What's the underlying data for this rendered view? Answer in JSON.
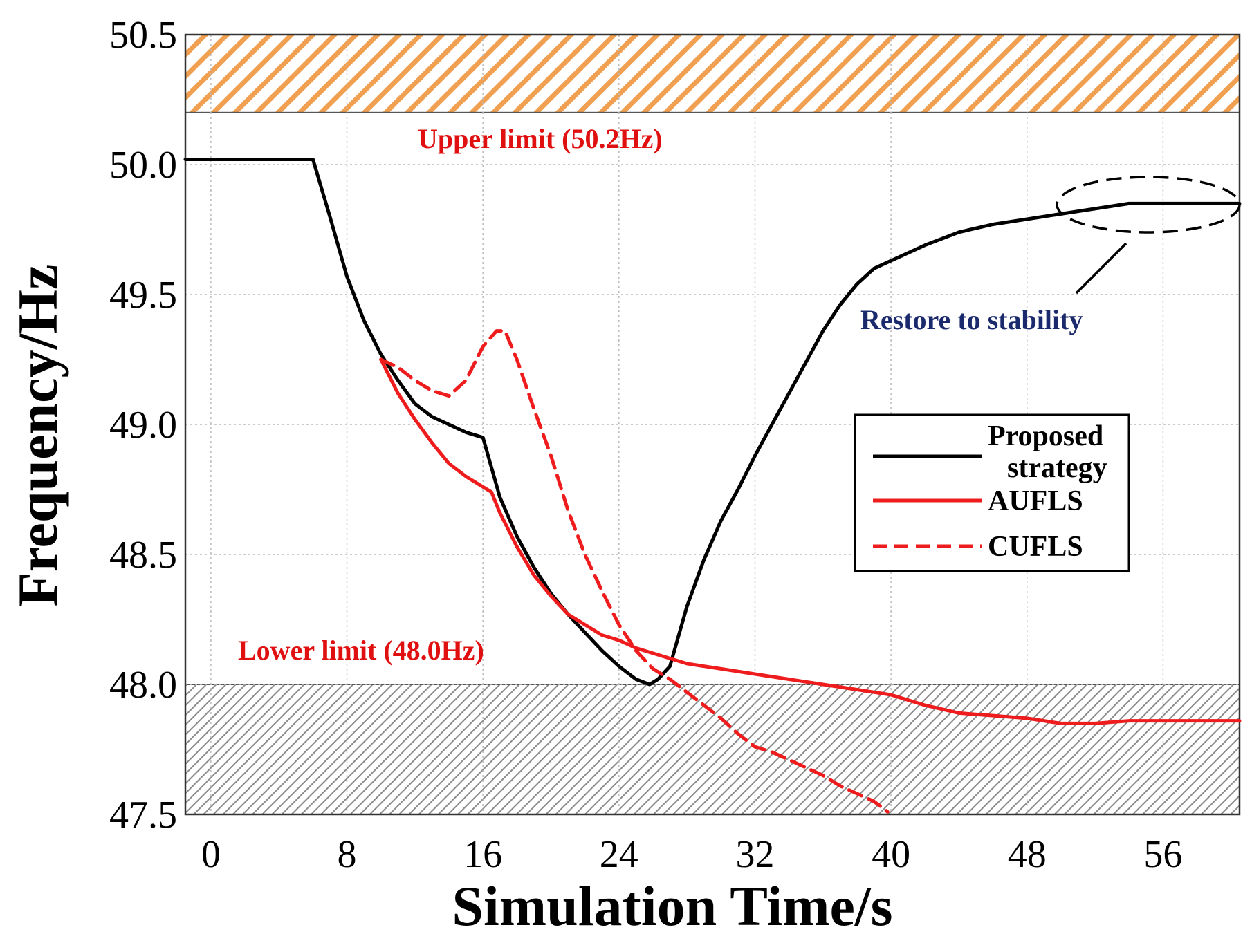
{
  "chart_data": {
    "type": "line",
    "title": "",
    "xlabel": "Simulation Time/s",
    "ylabel": "Frequency/Hz",
    "xlim": [
      -1.5,
      60.5
    ],
    "ylim": [
      47.5,
      50.5
    ],
    "xticks": [
      "0",
      "8",
      "16",
      "24",
      "32",
      "40",
      "48",
      "56"
    ],
    "xtick_values": [
      0,
      8,
      16,
      24,
      32,
      40,
      48,
      56
    ],
    "yticks": [
      "47.5",
      "48.0",
      "48.5",
      "49.0",
      "49.5",
      "50.0",
      "50.5"
    ],
    "ytick_values": [
      47.5,
      48.0,
      48.5,
      49.0,
      49.5,
      50.0,
      50.5
    ],
    "grid": true,
    "bands": [
      {
        "name": "upper-forbidden-band",
        "from": 50.2,
        "to": 50.5,
        "color": "#f0a050"
      },
      {
        "name": "lower-forbidden-band",
        "from": 47.5,
        "to": 48.0,
        "color": "#909090"
      }
    ],
    "series": [
      {
        "name": "Proposed strategy",
        "legend_lines": [
          "Proposed",
          "strategy"
        ],
        "color": "#000000",
        "dash": "solid",
        "x": [
          -1.5,
          5.3,
          6.0,
          7.0,
          8.0,
          9.0,
          10.0,
          11.0,
          12.0,
          13.0,
          14.0,
          15.0,
          16.0,
          17.0,
          18.0,
          19.0,
          20.0,
          21.0,
          22.0,
          23.0,
          24.0,
          25.0,
          25.8,
          26.3,
          27.0,
          28.0,
          29.0,
          30.0,
          31.0,
          32.0,
          33.0,
          34.0,
          35.0,
          36.0,
          37.0,
          38.0,
          39.0,
          40.0,
          42.0,
          44.0,
          46.0,
          48.0,
          50.0,
          52.0,
          54.0,
          56.0,
          58.0,
          60.5
        ],
        "values": [
          50.02,
          50.02,
          50.02,
          49.8,
          49.57,
          49.4,
          49.27,
          49.17,
          49.08,
          49.03,
          49.0,
          48.97,
          48.95,
          48.72,
          48.57,
          48.45,
          48.35,
          48.27,
          48.2,
          48.13,
          48.07,
          48.02,
          48.0,
          48.02,
          48.07,
          48.3,
          48.48,
          48.63,
          48.75,
          48.88,
          49.0,
          49.12,
          49.24,
          49.36,
          49.46,
          49.54,
          49.6,
          49.63,
          49.69,
          49.74,
          49.77,
          49.79,
          49.81,
          49.83,
          49.85,
          49.85,
          49.85,
          49.85
        ]
      },
      {
        "name": "AUFLS",
        "legend_lines": [
          "AUFLS"
        ],
        "color": "#ee1c1c",
        "dash": "solid",
        "x": [
          10.0,
          11.0,
          12.0,
          13.0,
          14.0,
          15.0,
          16.0,
          16.5,
          17.0,
          18.0,
          19.0,
          20.0,
          21.0,
          22.0,
          23.0,
          24.0,
          25.0,
          26.0,
          27.0,
          28.0,
          30.0,
          32.0,
          34.0,
          36.0,
          38.0,
          40.0,
          42.0,
          44.0,
          46.0,
          48.0,
          50.0,
          52.0,
          54.0,
          56.0,
          58.0,
          60.5
        ],
        "values": [
          49.25,
          49.12,
          49.02,
          48.93,
          48.85,
          48.8,
          48.76,
          48.74,
          48.66,
          48.53,
          48.42,
          48.34,
          48.27,
          48.23,
          48.19,
          48.17,
          48.14,
          48.12,
          48.1,
          48.08,
          48.06,
          48.04,
          48.02,
          48.0,
          47.98,
          47.96,
          47.92,
          47.89,
          47.88,
          47.87,
          47.85,
          47.85,
          47.86,
          47.86,
          47.86,
          47.86
        ]
      },
      {
        "name": "CUFLS",
        "legend_lines": [
          "CUFLS"
        ],
        "color": "#ee1c1c",
        "dash": "dashed",
        "x": [
          10.0,
          11.0,
          12.0,
          13.0,
          14.0,
          15.0,
          16.0,
          16.8,
          17.3,
          18.0,
          19.0,
          20.0,
          21.0,
          22.0,
          23.0,
          24.0,
          25.0,
          26.0,
          27.0,
          28.0,
          29.0,
          30.0,
          31.0,
          32.0,
          33.0,
          34.0,
          35.0,
          36.0,
          37.0,
          38.0,
          39.0,
          39.8
        ],
        "values": [
          49.25,
          49.22,
          49.17,
          49.13,
          49.11,
          49.17,
          49.3,
          49.36,
          49.36,
          49.25,
          49.06,
          48.88,
          48.67,
          48.5,
          48.36,
          48.23,
          48.13,
          48.06,
          48.02,
          47.97,
          47.92,
          47.87,
          47.81,
          47.76,
          47.74,
          47.71,
          47.68,
          47.65,
          47.61,
          47.58,
          47.55,
          47.51
        ]
      }
    ],
    "annotations": {
      "upper_limit": "Upper limit (50.2Hz)",
      "lower_limit": "Lower limit (48.0Hz)",
      "restore": "Restore to stability"
    },
    "legend_position": "right-middle"
  },
  "colors": {
    "annotation_red": "#e01010",
    "annotation_navy": "#1a2a6c",
    "grid": "#bbbbbb"
  }
}
